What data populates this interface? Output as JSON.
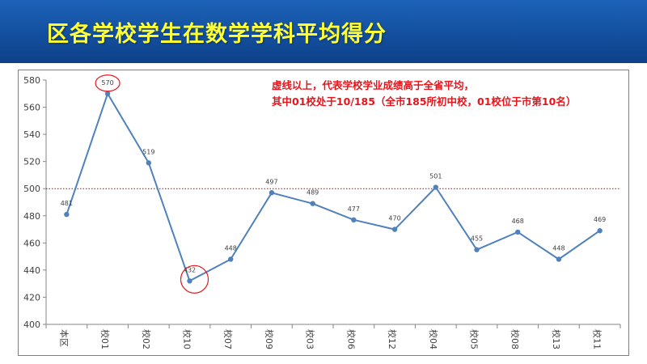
{
  "header": {
    "title": "区各学校学生在数学学科平均得分"
  },
  "annotation": {
    "lines": [
      "虚线以上，代表学校学业成绩高于全省平均，",
      "其中01校处于10/185（全市185所初中校，01校位于市第10名）"
    ]
  },
  "colors": {
    "header_bg": "#134f9e",
    "title": "#ffff33",
    "series": "#4f81bd",
    "reference_line": "#c00000",
    "highlight": "#e8141b",
    "annotation": "#e8141b"
  },
  "chart_data": {
    "type": "line",
    "title": "",
    "xlabel": "",
    "ylabel": "",
    "categories": [
      "本区",
      "校01",
      "校02",
      "校10",
      "校07",
      "校09",
      "校03",
      "校06",
      "校12",
      "校04",
      "校05",
      "校08",
      "校13",
      "校11"
    ],
    "series": [
      {
        "values": [
          481,
          570,
          519,
          432,
          448,
          497,
          489,
          477,
          470,
          501,
          455,
          468,
          448,
          469
        ]
      }
    ],
    "data_labels": [
      "481",
      "570",
      "519",
      "432",
      "448",
      "497",
      "489",
      "477",
      "470",
      "501",
      "455",
      "468",
      "448",
      "469"
    ],
    "ylim": [
      400,
      580
    ],
    "yticks": [
      400,
      420,
      440,
      460,
      480,
      500,
      520,
      540,
      560,
      580
    ],
    "reference_line": {
      "value": 500,
      "style": "dotted"
    },
    "highlighted_categories": [
      "校01",
      "校10"
    ],
    "grid": false,
    "legend": "none"
  }
}
